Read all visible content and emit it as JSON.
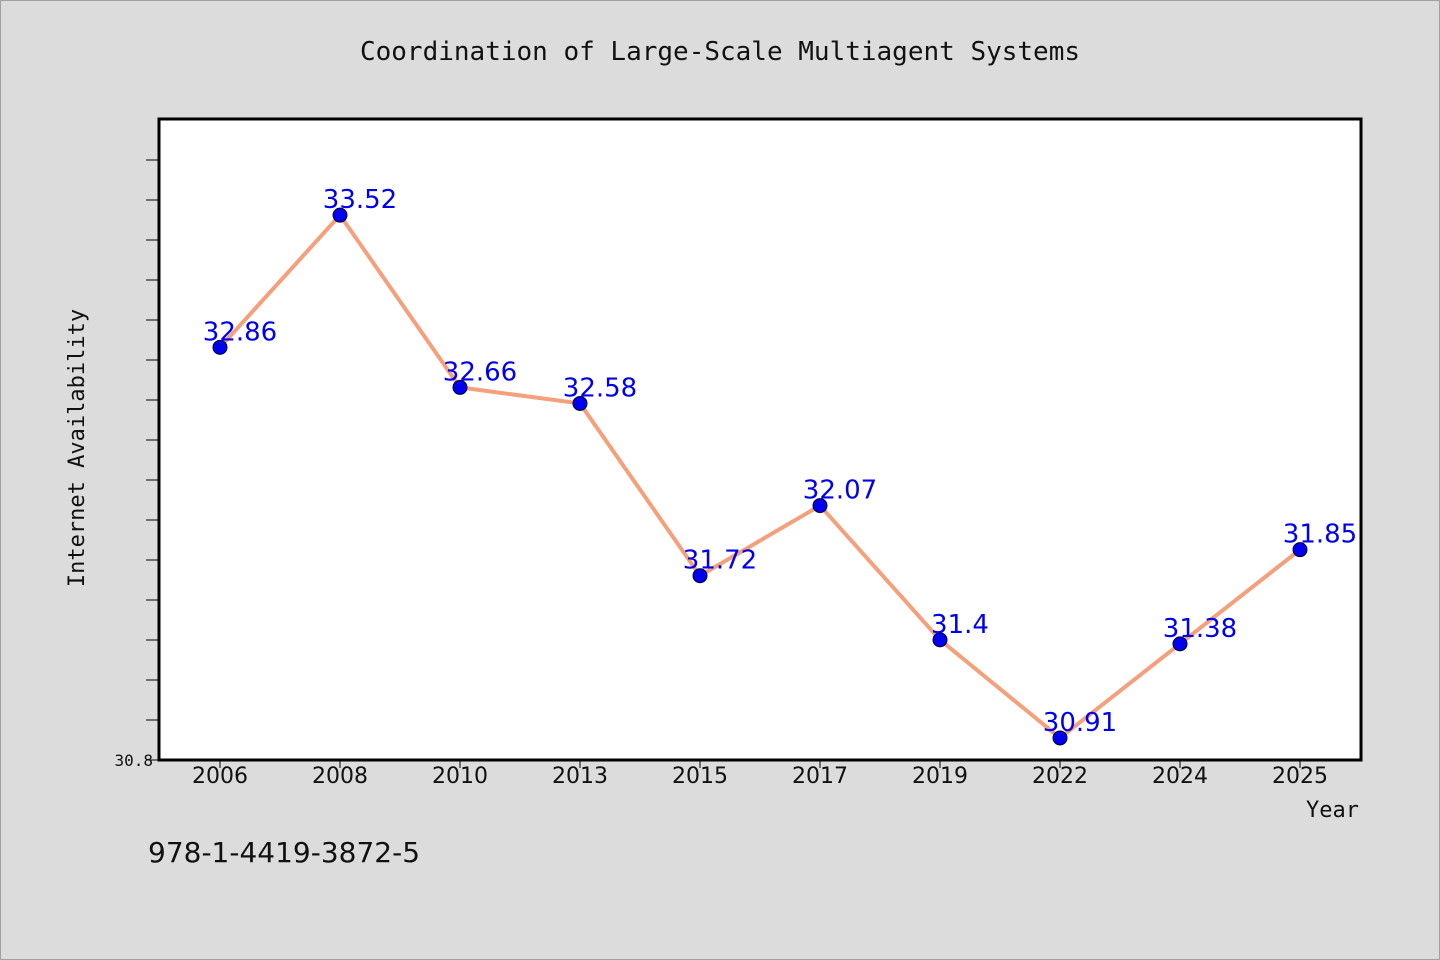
{
  "chart_data": {
    "type": "line",
    "title": "Coordination of Large-Scale Multiagent Systems",
    "xlabel": "Year",
    "ylabel": "Internet Availability",
    "categories": [
      "2006",
      "2008",
      "2010",
      "2013",
      "2015",
      "2017",
      "2019",
      "2022",
      "2024",
      "2025"
    ],
    "series": [
      {
        "values": [
          32.86,
          33.52,
          32.66,
          32.58,
          31.72,
          32.07,
          31.4,
          30.91,
          31.38,
          31.85
        ]
      }
    ],
    "data_labels": [
      "32.86",
      "33.52",
      "32.66",
      "32.58",
      "31.72",
      "32.07",
      "31.4",
      "30.91",
      "31.38",
      "31.85"
    ],
    "y_tick_labels": [
      "30.8"
    ],
    "ylim": [
      30.8,
      34.0
    ],
    "grid": false,
    "colors": {
      "line": "#f4a07c",
      "marker": "#0000ee",
      "label": "#0000ee",
      "plot_bg": "#ffffff",
      "page_bg": "#dcdcdc"
    }
  },
  "footer": {
    "isbn": "978-1-4419-3872-5"
  }
}
